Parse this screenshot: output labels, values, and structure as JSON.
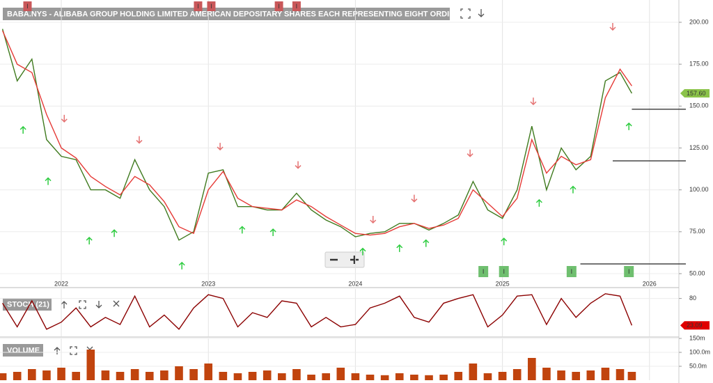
{
  "chart_data": [
    {
      "type": "line",
      "title": "BABA.NYS - ALIBABA GROUP HOLDING LIMITED AMERICAN DEPOSITARY SHARES EACH REPRESENTING EIGHT ORDINARY SHARE",
      "x": [
        2021.6,
        2021.7,
        2021.8,
        2021.9,
        2022.0,
        2022.1,
        2022.2,
        2022.3,
        2022.4,
        2022.5,
        2022.6,
        2022.7,
        2022.8,
        2022.9,
        2023.0,
        2023.1,
        2023.2,
        2023.3,
        2023.4,
        2023.5,
        2023.6,
        2023.7,
        2023.8,
        2023.9,
        2024.0,
        2024.1,
        2024.2,
        2024.3,
        2024.4,
        2024.5,
        2024.6,
        2024.7,
        2024.8,
        2024.9,
        2025.0,
        2025.1,
        2025.2,
        2025.3,
        2025.4,
        2025.5,
        2025.6,
        2025.7,
        2025.8,
        2025.88
      ],
      "series": [
        {
          "color": "#3f7a1e",
          "values": [
            196,
            165,
            178,
            130,
            120,
            118,
            100,
            100,
            95,
            118,
            100,
            90,
            70,
            75,
            110,
            112,
            90,
            90,
            88,
            88,
            98,
            88,
            82,
            78,
            72,
            74,
            75,
            80,
            80,
            76,
            80,
            85,
            105,
            88,
            83,
            100,
            138,
            100,
            125,
            112,
            120,
            165,
            170,
            157.6
          ]
        },
        {
          "color": "#e53935",
          "values": [
            195,
            175,
            170,
            145,
            125,
            119,
            108,
            102,
            97,
            108,
            103,
            93,
            78,
            74,
            100,
            111,
            95,
            90,
            89,
            88,
            94,
            90,
            84,
            79,
            74,
            73,
            74,
            78,
            80,
            77,
            79,
            83,
            100,
            92,
            84,
            95,
            130,
            110,
            120,
            115,
            118,
            155,
            172,
            162
          ]
        }
      ],
      "last_label": "157.60",
      "xlim": [
        2021.583,
        2026.2
      ],
      "xticks": [
        2022,
        2023,
        2024,
        2025,
        2026
      ],
      "ylim": [
        45,
        213.3
      ],
      "yticks": [
        {
          "value": 50,
          "label": "50.00"
        },
        {
          "value": 75,
          "label": "75.00"
        },
        {
          "value": 100,
          "label": "100.00"
        },
        {
          "value": 125,
          "label": "125.00"
        },
        {
          "value": 150,
          "label": "150.00"
        },
        {
          "value": 175,
          "label": "175.00"
        },
        {
          "value": 200,
          "label": "200.00"
        }
      ],
      "grid": true,
      "signals": [
        {
          "x": 2021.74,
          "value": 135.6,
          "direction": "up"
        },
        {
          "x": 2021.91,
          "value": 105,
          "direction": "up"
        },
        {
          "x": 2022.19,
          "value": 69.5,
          "direction": "up"
        },
        {
          "x": 2022.36,
          "value": 74,
          "direction": "up"
        },
        {
          "x": 2022.82,
          "value": 54.6,
          "direction": "up"
        },
        {
          "x": 2023.23,
          "value": 76,
          "direction": "up"
        },
        {
          "x": 2023.44,
          "value": 74.5,
          "direction": "up"
        },
        {
          "x": 2024.05,
          "value": 63,
          "direction": "up"
        },
        {
          "x": 2024.3,
          "value": 65,
          "direction": "up"
        },
        {
          "x": 2024.48,
          "value": 68,
          "direction": "up"
        },
        {
          "x": 2025.01,
          "value": 69,
          "direction": "up"
        },
        {
          "x": 2025.25,
          "value": 92,
          "direction": "up"
        },
        {
          "x": 2025.48,
          "value": 100,
          "direction": "up"
        },
        {
          "x": 2025.86,
          "value": 137.7,
          "direction": "up"
        },
        {
          "x": 2022.02,
          "value": 142.7,
          "direction": "down"
        },
        {
          "x": 2022.53,
          "value": 130,
          "direction": "down"
        },
        {
          "x": 2023.08,
          "value": 126,
          "direction": "down"
        },
        {
          "x": 2023.61,
          "value": 115,
          "direction": "down"
        },
        {
          "x": 2024.12,
          "value": 82.4,
          "direction": "down"
        },
        {
          "x": 2024.4,
          "value": 95,
          "direction": "down"
        },
        {
          "x": 2024.78,
          "value": 122,
          "direction": "down"
        },
        {
          "x": 2025.21,
          "value": 153,
          "direction": "down"
        },
        {
          "x": 2025.75,
          "value": 197.5,
          "direction": "down"
        }
      ],
      "levels": [
        {
          "value": 148.1,
          "x_start": 2025.88
        },
        {
          "value": 117.3,
          "x_start": 2025.75
        },
        {
          "value": 55.8,
          "x_start": 2025.53
        }
      ],
      "events": [
        {
          "x": 2021.77,
          "label": "I",
          "row": "top"
        },
        {
          "x": 2022.93,
          "label": "I",
          "row": "top"
        },
        {
          "x": 2023.02,
          "label": "I",
          "row": "top"
        },
        {
          "x": 2023.48,
          "label": "I",
          "row": "top"
        },
        {
          "x": 2023.6,
          "label": "I",
          "row": "top"
        },
        {
          "x": 2024.87,
          "label": "I",
          "row": "bottom"
        },
        {
          "x": 2025.01,
          "label": "I",
          "row": "bottom"
        },
        {
          "x": 2025.47,
          "label": "I",
          "row": "bottom"
        },
        {
          "x": 2025.86,
          "label": "I",
          "row": "bottom"
        }
      ]
    },
    {
      "type": "line",
      "title": "STOCH (21)",
      "x": [
        2021.6,
        2021.7,
        2021.8,
        2021.9,
        2022.0,
        2022.1,
        2022.2,
        2022.3,
        2022.4,
        2022.5,
        2022.6,
        2022.7,
        2022.8,
        2022.9,
        2023.0,
        2023.1,
        2023.2,
        2023.3,
        2023.4,
        2023.5,
        2023.6,
        2023.7,
        2023.8,
        2023.9,
        2024.0,
        2024.1,
        2024.2,
        2024.3,
        2024.4,
        2024.5,
        2024.6,
        2024.7,
        2024.8,
        2024.9,
        2025.0,
        2025.1,
        2025.2,
        2025.3,
        2025.4,
        2025.5,
        2025.6,
        2025.7,
        2025.8,
        2025.88
      ],
      "series": [
        {
          "color": "#8b0000",
          "values": [
            70,
            20,
            75,
            15,
            30,
            60,
            20,
            40,
            25,
            85,
            20,
            45,
            15,
            60,
            88,
            80,
            20,
            50,
            40,
            75,
            70,
            20,
            40,
            20,
            25,
            60,
            70,
            85,
            40,
            30,
            70,
            80,
            88,
            20,
            45,
            85,
            88,
            25,
            80,
            40,
            70,
            90,
            85,
            23.09
          ]
        }
      ],
      "last_label": "23.09",
      "xlim": [
        2021.583,
        2026.2
      ],
      "ylim": [
        0,
        100
      ],
      "yticks": [
        80
      ]
    },
    {
      "type": "bar",
      "title": "VOLUME",
      "x": [
        2021.6,
        2021.7,
        2021.8,
        2021.9,
        2022.0,
        2022.1,
        2022.2,
        2022.3,
        2022.4,
        2022.5,
        2022.6,
        2022.7,
        2022.8,
        2022.9,
        2023.0,
        2023.1,
        2023.2,
        2023.3,
        2023.4,
        2023.5,
        2023.6,
        2023.7,
        2023.8,
        2023.9,
        2024.0,
        2024.1,
        2024.2,
        2024.3,
        2024.4,
        2024.5,
        2024.6,
        2024.7,
        2024.8,
        2024.9,
        2025.0,
        2025.1,
        2025.2,
        2025.3,
        2025.4,
        2025.5,
        2025.6,
        2025.7,
        2025.8,
        2025.88
      ],
      "color": "#c1440e",
      "values": [
        25000000,
        30000000,
        40000000,
        35000000,
        45000000,
        30000000,
        110000000,
        35000000,
        30000000,
        40000000,
        30000000,
        35000000,
        50000000,
        40000000,
        60000000,
        30000000,
        25000000,
        30000000,
        35000000,
        25000000,
        40000000,
        20000000,
        25000000,
        45000000,
        25000000,
        20000000,
        18000000,
        25000000,
        20000000,
        18000000,
        20000000,
        30000000,
        60000000,
        25000000,
        30000000,
        40000000,
        80000000,
        45000000,
        35000000,
        30000000,
        35000000,
        45000000,
        40000000,
        30000000
      ],
      "xlim": [
        2021.583,
        2026.2
      ],
      "ylim": [
        0,
        150000000
      ],
      "yticks": [
        {
          "value": 50000000,
          "label": "50.0m"
        },
        {
          "value": 100000000,
          "label": "100.0m"
        },
        {
          "value": 150000000,
          "label": "150m"
        }
      ]
    }
  ]
}
